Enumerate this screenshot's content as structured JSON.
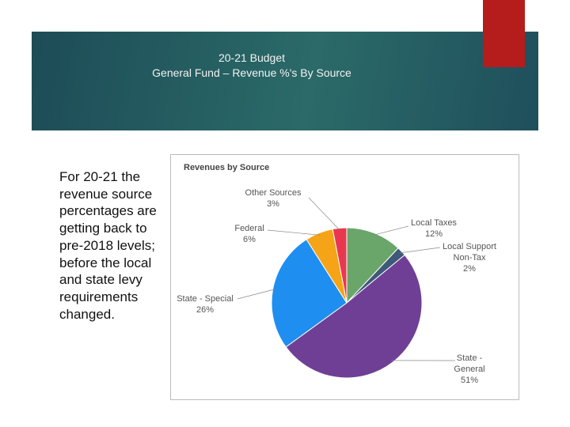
{
  "slide": {
    "title": "20-21 Budget",
    "subtitle": "General Fund – Revenue %'s By Source",
    "body": "For 20-21 the revenue source percentages are getting back to pre-2018 levels; before the local and state levy requirements changed."
  },
  "chart_data": {
    "type": "pie",
    "title": "Revenues by Source",
    "categories": [
      "Local Taxes",
      "Local Support Non-Tax",
      "State - General",
      "State - Special",
      "Federal",
      "Other Sources"
    ],
    "values": [
      12,
      2,
      51,
      26,
      6,
      3
    ],
    "value_labels": [
      "12%",
      "2%",
      "51%",
      "26%",
      "6%",
      "3%"
    ],
    "colors": [
      "#6aa56a",
      "#3f5a78",
      "#6f3f96",
      "#1e8ff0",
      "#f5a418",
      "#e8384f"
    ]
  }
}
